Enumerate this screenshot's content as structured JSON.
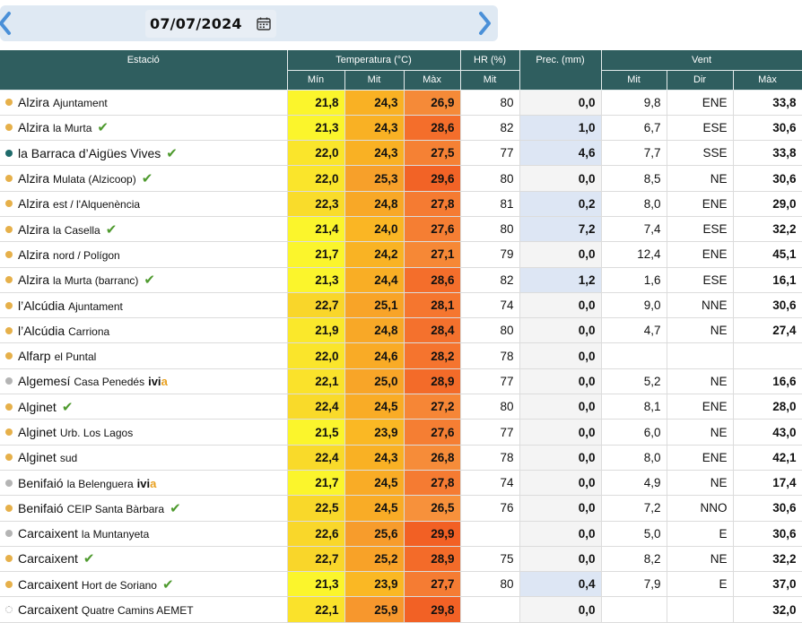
{
  "header": {
    "date": "07/07/2024"
  },
  "columns": {
    "station": "Estació",
    "temperature": "Temperatura (°C)",
    "hr": "HR (%)",
    "prec": "Prec. (mm)",
    "wind": "Vent",
    "min": "Mín",
    "mit": "Mit",
    "max": "Màx",
    "hr_mit": "Mit",
    "wind_mit": "Mit",
    "wind_dir": "Dir",
    "wind_max": "Màx"
  },
  "colors": {
    "header_bg": "#2f5e5f",
    "dot_orange": "#e6b04a",
    "dot_teal": "#1f6b6b",
    "dot_gray": "#b4b4b4",
    "check": "#4e9a2e"
  },
  "rows": [
    {
      "name": "Alzira",
      "sub": "Ajuntament",
      "check": false,
      "ivia": false,
      "dot": "orange",
      "min": "21,8",
      "mit": "24,3",
      "max": "26,9",
      "hr": "80",
      "prec": "0,0",
      "wmit": "9,8",
      "wdir": "ENE",
      "wmax": "33,8",
      "cmin": "#fbf52c",
      "cmit": "#f9b124",
      "cmax": "#f58a38"
    },
    {
      "name": "Alzira",
      "sub": "la Murta",
      "check": true,
      "ivia": false,
      "dot": "orange",
      "min": "21,3",
      "mit": "24,3",
      "max": "28,6",
      "hr": "82",
      "prec": "1,0",
      "wmit": "6,7",
      "wdir": "ESE",
      "wmax": "30,6",
      "cmin": "#fbf52c",
      "cmit": "#f9b124",
      "cmax": "#f46e2b"
    },
    {
      "name": "la Barraca d’Aigües Vives",
      "sub": "",
      "check": true,
      "ivia": false,
      "dot": "teal",
      "min": "22,0",
      "mit": "24,3",
      "max": "27,5",
      "hr": "77",
      "prec": "4,6",
      "wmit": "7,7",
      "wdir": "SSE",
      "wmax": "33,8",
      "cmin": "#fae52b",
      "cmit": "#f9b124",
      "cmax": "#f58134"
    },
    {
      "name": "Alzira",
      "sub": "Mulata (Alzicoop)",
      "check": true,
      "ivia": false,
      "dot": "orange",
      "min": "22,0",
      "mit": "25,3",
      "max": "29,6",
      "hr": "80",
      "prec": "0,0",
      "wmit": "8,5",
      "wdir": "NE",
      "wmax": "30,6",
      "cmin": "#fae52b",
      "cmit": "#f7a02a",
      "cmax": "#f26326"
    },
    {
      "name": "Alzira",
      "sub": "est / l'Alquenència",
      "check": false,
      "ivia": false,
      "dot": "orange",
      "min": "22,3",
      "mit": "24,8",
      "max": "27,8",
      "hr": "81",
      "prec": "0,2",
      "wmit": "8,0",
      "wdir": "ENE",
      "wmax": "29,0",
      "cmin": "#f9dc2b",
      "cmit": "#f8a827",
      "cmax": "#f57b32"
    },
    {
      "name": "Alzira",
      "sub": "la Casella",
      "check": true,
      "ivia": false,
      "dot": "orange",
      "min": "21,4",
      "mit": "24,0",
      "max": "27,6",
      "hr": "80",
      "prec": "7,2",
      "wmit": "7,4",
      "wdir": "ESE",
      "wmax": "32,2",
      "cmin": "#fbf52c",
      "cmit": "#fab624",
      "cmax": "#f57e33"
    },
    {
      "name": "Alzira",
      "sub": "nord / Polígon",
      "check": false,
      "ivia": false,
      "dot": "orange",
      "min": "21,7",
      "mit": "24,2",
      "max": "27,1",
      "hr": "79",
      "prec": "0,0",
      "wmit": "12,4",
      "wdir": "ENE",
      "wmax": "45,1",
      "cmin": "#fbf52c",
      "cmit": "#f9b324",
      "cmax": "#f68836"
    },
    {
      "name": "Alzira",
      "sub": "la Murta (barranc)",
      "check": true,
      "ivia": false,
      "dot": "orange",
      "min": "21,3",
      "mit": "24,4",
      "max": "28,6",
      "hr": "82",
      "prec": "1,2",
      "wmit": "1,6",
      "wdir": "ESE",
      "wmax": "16,1",
      "cmin": "#fbf52c",
      "cmit": "#f9ae25",
      "cmax": "#f46e2b"
    },
    {
      "name": "l’Alcúdia",
      "sub": "Ajuntament",
      "check": false,
      "ivia": false,
      "dot": "orange",
      "min": "22,7",
      "mit": "25,1",
      "max": "28,1",
      "hr": "74",
      "prec": "0,0",
      "wmit": "9,0",
      "wdir": "NNE",
      "wmax": "30,6",
      "cmin": "#f9d62a",
      "cmit": "#f8a428",
      "cmax": "#f5762f"
    },
    {
      "name": "l’Alcúdia",
      "sub": "Carriona",
      "check": false,
      "ivia": false,
      "dot": "orange",
      "min": "21,9",
      "mit": "24,8",
      "max": "28,4",
      "hr": "80",
      "prec": "0,0",
      "wmit": "4,7",
      "wdir": "NE",
      "wmax": "27,4",
      "cmin": "#fae82b",
      "cmit": "#f8a827",
      "cmax": "#f4712d"
    },
    {
      "name": "Alfarp",
      "sub": "el Puntal",
      "check": false,
      "ivia": false,
      "dot": "orange",
      "min": "22,0",
      "mit": "24,6",
      "max": "28,2",
      "hr": "78",
      "prec": "0,0",
      "wmit": "",
      "wdir": "",
      "wmax": "",
      "cmin": "#fae52b",
      "cmit": "#f9ab26",
      "cmax": "#f5742e"
    },
    {
      "name": "Algemesí",
      "sub": "Casa Penedés",
      "check": false,
      "ivia": true,
      "dot": "gray",
      "min": "22,1",
      "mit": "25,0",
      "max": "28,9",
      "hr": "77",
      "prec": "0,0",
      "wmit": "5,2",
      "wdir": "NE",
      "wmax": "16,6",
      "cmin": "#fae22b",
      "cmit": "#f8a528",
      "cmax": "#f36b29"
    },
    {
      "name": "Alginet",
      "sub": "",
      "check": true,
      "ivia": false,
      "dot": "orange",
      "min": "22,4",
      "mit": "24,5",
      "max": "27,2",
      "hr": "80",
      "prec": "0,0",
      "wmit": "8,1",
      "wdir": "ENE",
      "wmax": "28,0",
      "cmin": "#f9da2a",
      "cmit": "#f9ac26",
      "cmax": "#f68636"
    },
    {
      "name": "Alginet",
      "sub": "Urb. Los Lagos",
      "check": false,
      "ivia": false,
      "dot": "orange",
      "min": "21,5",
      "mit": "23,9",
      "max": "27,6",
      "hr": "77",
      "prec": "0,0",
      "wmit": "6,0",
      "wdir": "NE",
      "wmax": "43,0",
      "cmin": "#fbf52c",
      "cmit": "#fab824",
      "cmax": "#f57e33"
    },
    {
      "name": "Alginet",
      "sub": "sud",
      "check": false,
      "ivia": false,
      "dot": "orange",
      "min": "22,4",
      "mit": "24,3",
      "max": "26,8",
      "hr": "78",
      "prec": "0,0",
      "wmit": "8,0",
      "wdir": "ENE",
      "wmax": "42,1",
      "cmin": "#f9da2a",
      "cmit": "#f9b124",
      "cmax": "#f68c39"
    },
    {
      "name": "Benifaió",
      "sub": "la Belenguera",
      "check": false,
      "ivia": true,
      "dot": "gray",
      "min": "21,7",
      "mit": "24,5",
      "max": "27,8",
      "hr": "74",
      "prec": "0,0",
      "wmit": "4,9",
      "wdir": "NE",
      "wmax": "17,4",
      "cmin": "#fbf52c",
      "cmit": "#f9ac26",
      "cmax": "#f57b32"
    },
    {
      "name": "Benifaió",
      "sub": "CEIP Santa Bàrbara",
      "check": true,
      "ivia": false,
      "dot": "orange",
      "min": "22,5",
      "mit": "24,5",
      "max": "26,5",
      "hr": "76",
      "prec": "0,0",
      "wmit": "7,2",
      "wdir": "NNO",
      "wmax": "30,6",
      "cmin": "#f9d82a",
      "cmit": "#f9ac26",
      "cmax": "#f7913b"
    },
    {
      "name": "Carcaixent",
      "sub": "la Muntanyeta",
      "check": false,
      "ivia": false,
      "dot": "gray",
      "min": "22,6",
      "mit": "25,6",
      "max": "29,9",
      "hr": "",
      "prec": "0,0",
      "wmit": "5,0",
      "wdir": "E",
      "wmax": "30,6",
      "cmin": "#f9d72a",
      "cmit": "#f79c2c",
      "cmax": "#f26024"
    },
    {
      "name": "Carcaixent",
      "sub": "",
      "check": true,
      "ivia": false,
      "dot": "orange",
      "min": "22,7",
      "mit": "25,2",
      "max": "28,9",
      "hr": "75",
      "prec": "0,0",
      "wmit": "8,2",
      "wdir": "NE",
      "wmax": "32,2",
      "cmin": "#f9d62a",
      "cmit": "#f8a228",
      "cmax": "#f36b29"
    },
    {
      "name": "Carcaixent",
      "sub": "Hort de Soriano",
      "check": true,
      "ivia": false,
      "dot": "orange",
      "min": "21,3",
      "mit": "23,9",
      "max": "27,7",
      "hr": "80",
      "prec": "0,4",
      "wmit": "7,9",
      "wdir": "E",
      "wmax": "37,0",
      "cmin": "#fbf52c",
      "cmit": "#fab824",
      "cmax": "#f57c33"
    },
    {
      "name": "Carcaixent",
      "sub": "Quatre Camins AEMET",
      "check": false,
      "ivia": false,
      "dot": "empty",
      "min": "22,1",
      "mit": "25,9",
      "max": "29,8",
      "hr": "",
      "prec": "0,0",
      "wmit": "",
      "wdir": "",
      "wmax": "32,0",
      "cmin": "#fae22b",
      "cmit": "#f7972d",
      "cmax": "#f26125"
    }
  ]
}
